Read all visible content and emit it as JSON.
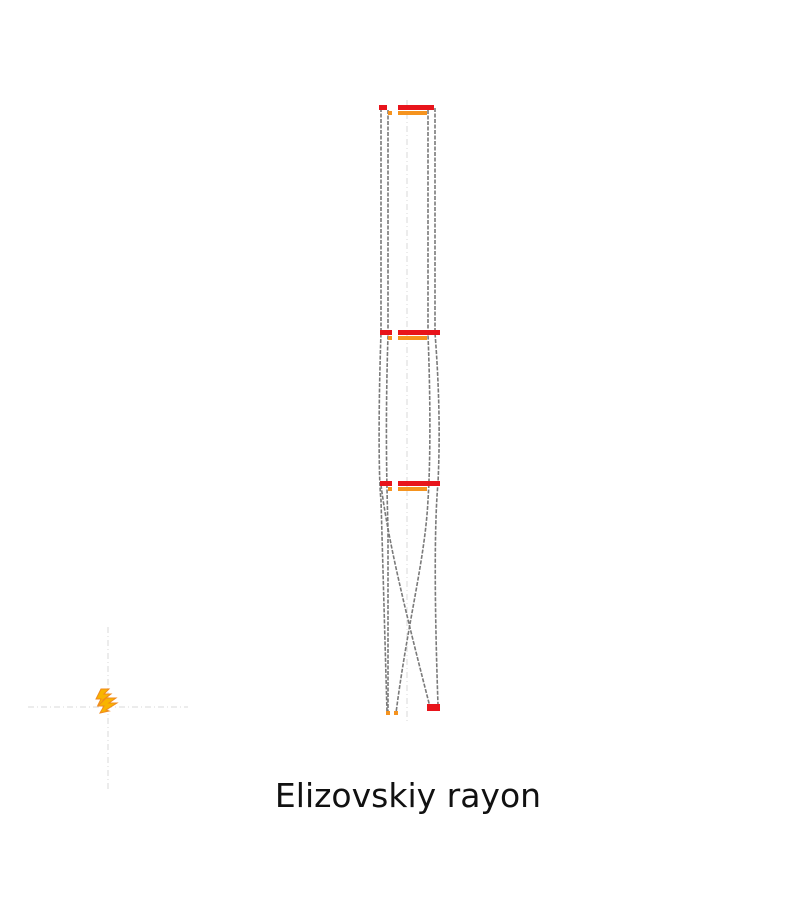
{
  "title": "Elizovskiy rayon",
  "colors": {
    "background": "#ffffff",
    "guide": "#d9d9d9",
    "connector": "#7a7a7a",
    "primary_bar": "#e8141b",
    "secondary_bar": "#f5931e",
    "icon_primary": "#f8b400",
    "icon_secondary": "#f08a1d"
  },
  "icons": {
    "legend_symbol": "lightning-bolt-icon"
  }
}
